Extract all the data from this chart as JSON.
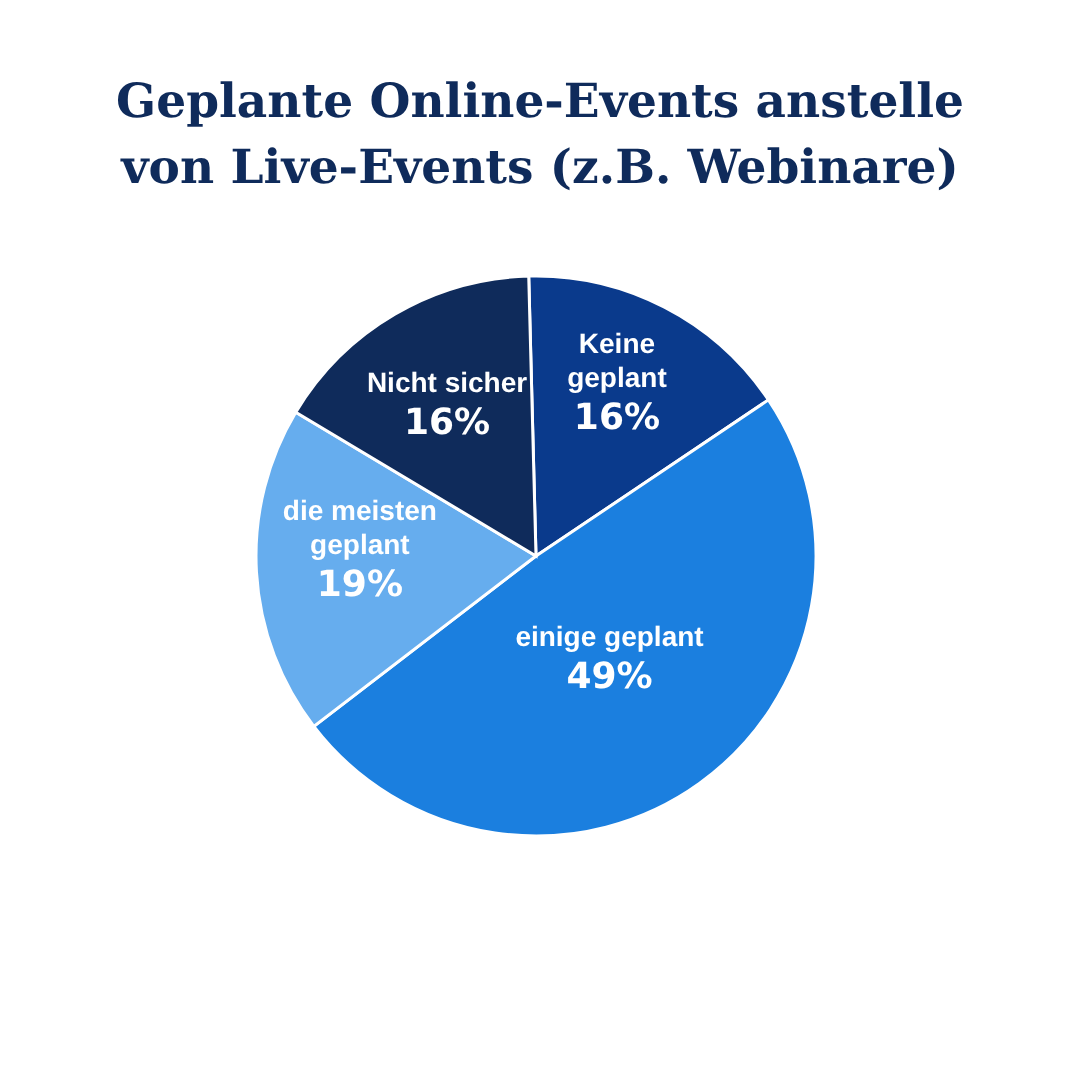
{
  "chart_data": {
    "type": "pie",
    "title": "Geplante Online-Events anstelle\nvon Live-Events (z.B. Webinare)",
    "categories": [
      "Keine\ngeplant",
      "einige geplant",
      "die meisten\ngeplant",
      "Nicht sicher"
    ],
    "values": [
      16,
      49,
      19,
      16
    ],
    "colors": [
      "#0a3a8c",
      "#1b7fdf",
      "#66adee",
      "#0f2b5b"
    ],
    "value_labels": [
      "16%",
      "49%",
      "19%",
      "16%"
    ],
    "legend": false
  }
}
